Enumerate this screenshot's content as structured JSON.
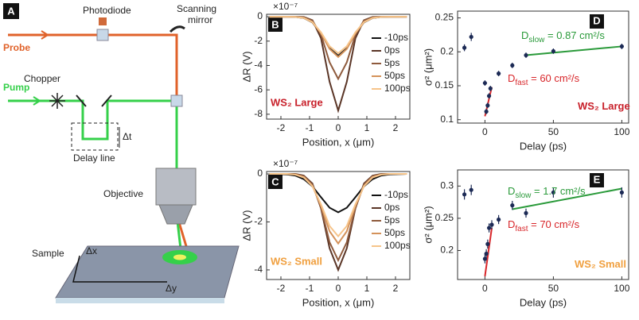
{
  "schematic": {
    "panel_label": "A",
    "photodiode": "Photodiode",
    "scanning": "Scanning",
    "mirror": "mirror",
    "probe": "Probe",
    "pump": "Pump",
    "chopper": "Chopper",
    "delay_time": "Δt",
    "delay_line": "Delay line",
    "objective": "Objective",
    "sample": "Sample",
    "dx": "Δx",
    "dy": "Δy"
  },
  "chart_data": [
    {
      "type": "line",
      "panel_label": "B",
      "y_scale_label": "×10⁻⁷",
      "y_label": "ΔR (V)",
      "x_label": "Position, x (μm)",
      "annotation": {
        "text": "WS₂ Large",
        "color": "#c8202a"
      },
      "x": [
        -2.4,
        -1.8,
        -1.5,
        -1.2,
        -0.9,
        -0.6,
        -0.3,
        0,
        0.3,
        0.6,
        0.9,
        1.2,
        1.5,
        1.8,
        2.4
      ],
      "series": [
        {
          "name": "-10ps",
          "color": "#111111",
          "values": [
            0,
            0,
            -0.02,
            -0.11,
            -0.47,
            -1.37,
            -2.59,
            -3.2,
            -2.59,
            -1.37,
            -0.47,
            -0.11,
            -0.02,
            0,
            0
          ]
        },
        {
          "name": "0ps",
          "color": "#5a3526",
          "values": [
            0,
            0,
            0,
            -0.02,
            -0.28,
            -1.77,
            -5.34,
            -7.7,
            -5.34,
            -1.77,
            -0.28,
            -0.02,
            0,
            0,
            0
          ]
        },
        {
          "name": "5ps",
          "color": "#8e5a3c",
          "values": [
            0,
            0,
            0,
            -0.04,
            -0.31,
            -1.47,
            -3.74,
            -5.1,
            -3.74,
            -1.47,
            -0.31,
            -0.04,
            0,
            0,
            0
          ]
        },
        {
          "name": "50ps",
          "color": "#d4925a",
          "values": [
            0,
            0,
            -0.01,
            -0.09,
            -0.45,
            -1.36,
            -2.64,
            -3.3,
            -2.64,
            -1.36,
            -0.45,
            -0.09,
            -0.01,
            0,
            0
          ]
        },
        {
          "name": "100ps",
          "color": "#f6c48a",
          "values": [
            0,
            0,
            -0.01,
            -0.1,
            -0.44,
            -1.28,
            -2.42,
            -3.0,
            -2.42,
            -1.28,
            -0.44,
            -0.1,
            -0.01,
            0,
            0
          ]
        }
      ],
      "xlim": [
        -2.5,
        2.5
      ],
      "xticks": [
        -2,
        -1,
        0,
        1,
        2
      ],
      "ylim": [
        -8.4,
        0.2
      ],
      "yticks": [
        -8,
        -6,
        -4,
        -2,
        0
      ]
    },
    {
      "type": "line",
      "panel_label": "C",
      "y_scale_label": "×10⁻⁷",
      "y_label": "ΔR (V)",
      "x_label": "Position, x (μm)",
      "annotation": {
        "text": "WS₂ Small",
        "color": "#f0a040"
      },
      "x": [
        -2.4,
        -1.8,
        -1.5,
        -1.2,
        -0.9,
        -0.6,
        -0.3,
        0,
        0.3,
        0.6,
        0.9,
        1.2,
        1.5,
        1.8,
        2.4
      ],
      "series": [
        {
          "name": "-10ps",
          "color": "#111111",
          "values": [
            0,
            -0.02,
            -0.07,
            -0.22,
            -0.52,
            -0.97,
            -1.41,
            -1.6,
            -1.41,
            -0.97,
            -0.52,
            -0.22,
            -0.07,
            -0.02,
            0
          ]
        },
        {
          "name": "0ps",
          "color": "#5a3526",
          "values": [
            0,
            0,
            0,
            -0.07,
            -0.4,
            -1.44,
            -3.1,
            -4.0,
            -3.1,
            -1.44,
            -0.4,
            -0.07,
            0,
            0,
            0
          ]
        },
        {
          "name": "5ps",
          "color": "#8e5a3c",
          "values": [
            0,
            0,
            -0.01,
            -0.09,
            -0.44,
            -1.42,
            -2.85,
            -3.6,
            -2.85,
            -1.42,
            -0.44,
            -0.09,
            -0.01,
            0,
            0
          ]
        },
        {
          "name": "50ps",
          "color": "#d4925a",
          "values": [
            0,
            0,
            -0.02,
            -0.13,
            -0.5,
            -1.33,
            -2.39,
            -2.9,
            -2.39,
            -1.33,
            -0.5,
            -0.13,
            -0.02,
            0,
            0
          ]
        },
        {
          "name": "100ps",
          "color": "#f6c48a",
          "values": [
            0,
            0,
            -0.03,
            -0.15,
            -0.51,
            -1.27,
            -2.17,
            -2.6,
            -2.17,
            -1.27,
            -0.51,
            -0.15,
            -0.03,
            0,
            0
          ]
        }
      ],
      "xlim": [
        -2.5,
        2.5
      ],
      "xticks": [
        -2,
        -1,
        0,
        1,
        2
      ],
      "ylim": [
        -4.4,
        0.1
      ],
      "yticks": [
        -4,
        -2,
        0
      ]
    },
    {
      "type": "scatter",
      "panel_label": "D",
      "y_label": "σ² (μm²)",
      "x_label": "Delay (ps)",
      "x": [
        -15,
        -10,
        0,
        1,
        2,
        3,
        4,
        10,
        20,
        30,
        50,
        100
      ],
      "values": [
        0.206,
        0.222,
        0.154,
        0.112,
        0.121,
        0.135,
        0.146,
        0.168,
        0.18,
        0.195,
        0.201,
        0.208
      ],
      "errors": [
        0.005,
        0.006,
        0.004,
        0.004,
        0.004,
        0.004,
        0.004,
        0.004,
        0.004,
        0.004,
        0.004,
        0.004
      ],
      "color": "#1c2a55",
      "fits": [
        {
          "x": [
            0,
            5
          ],
          "values": [
            0.105,
            0.148
          ],
          "color": "#d8262a"
        },
        {
          "x": [
            30,
            100
          ],
          "values": [
            0.195,
            0.208
          ],
          "color": "#2a9a3a"
        }
      ],
      "annotations": [
        {
          "text": "D",
          "sub": "slow",
          "rest": " = 0.87 cm²/s",
          "color": "#2a9a3a"
        },
        {
          "text": "D",
          "sub": "fast",
          "rest": " = 60 cm²/s",
          "color": "#d8262a"
        },
        {
          "text": "WS₂ Large",
          "color": "#c8202a"
        }
      ],
      "xlim": [
        -20,
        105
      ],
      "xticks": [
        0,
        50,
        100
      ],
      "ylim": [
        0.095,
        0.26
      ],
      "yticks": [
        0.1,
        0.15,
        0.2,
        0.25
      ]
    },
    {
      "type": "scatter",
      "panel_label": "E",
      "y_label": "σ² (μm²)",
      "x_label": "Delay (ps)",
      "x": [
        -15,
        -10,
        0,
        1,
        2,
        3,
        5,
        10,
        20,
        30,
        50,
        100
      ],
      "values": [
        0.287,
        0.294,
        0.187,
        0.195,
        0.21,
        0.235,
        0.24,
        0.248,
        0.27,
        0.258,
        0.29,
        0.29
      ],
      "errors": [
        0.008,
        0.008,
        0.007,
        0.007,
        0.007,
        0.007,
        0.007,
        0.007,
        0.007,
        0.007,
        0.008,
        0.008
      ],
      "color": "#1c2a55",
      "fits": [
        {
          "x": [
            0,
            5
          ],
          "values": [
            0.16,
            0.235
          ],
          "color": "#d8262a"
        },
        {
          "x": [
            20,
            100
          ],
          "values": [
            0.264,
            0.296
          ],
          "color": "#2a9a3a"
        }
      ],
      "annotations": [
        {
          "text": "D",
          "sub": "slow",
          "rest": " = 1.7 cm²/s",
          "color": "#2a9a3a"
        },
        {
          "text": "D",
          "sub": "fast",
          "rest": " = 70 cm²/s",
          "color": "#d8262a"
        },
        {
          "text": "WS₂ Small",
          "color": "#f0a040"
        }
      ],
      "xlim": [
        -20,
        105
      ],
      "xticks": [
        0,
        50,
        100
      ],
      "ylim": [
        0.155,
        0.325
      ],
      "yticks": [
        0.2,
        0.25,
        0.3
      ]
    }
  ]
}
